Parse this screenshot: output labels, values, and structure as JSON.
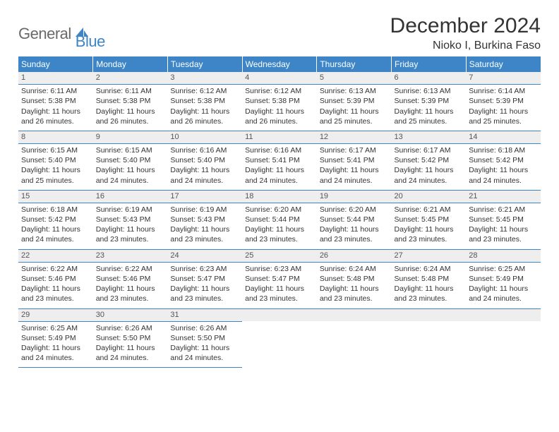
{
  "brand": {
    "first": "General",
    "second": "Blue"
  },
  "title": "December 2024",
  "location": "Nioko I, Burkina Faso",
  "colors": {
    "header_bg": "#3d85c6",
    "header_text": "#ffffff",
    "daynum_bg": "#eeeeee",
    "border": "#3d85c6",
    "body_text": "#333333",
    "logo_grey": "#6a6a6a",
    "logo_blue": "#3d85c6"
  },
  "weekdays": [
    "Sunday",
    "Monday",
    "Tuesday",
    "Wednesday",
    "Thursday",
    "Friday",
    "Saturday"
  ],
  "weeks": [
    [
      {
        "day": 1,
        "sunrise": "6:11 AM",
        "sunset": "5:38 PM",
        "daylight": "11 hours and 26 minutes."
      },
      {
        "day": 2,
        "sunrise": "6:11 AM",
        "sunset": "5:38 PM",
        "daylight": "11 hours and 26 minutes."
      },
      {
        "day": 3,
        "sunrise": "6:12 AM",
        "sunset": "5:38 PM",
        "daylight": "11 hours and 26 minutes."
      },
      {
        "day": 4,
        "sunrise": "6:12 AM",
        "sunset": "5:38 PM",
        "daylight": "11 hours and 26 minutes."
      },
      {
        "day": 5,
        "sunrise": "6:13 AM",
        "sunset": "5:39 PM",
        "daylight": "11 hours and 25 minutes."
      },
      {
        "day": 6,
        "sunrise": "6:13 AM",
        "sunset": "5:39 PM",
        "daylight": "11 hours and 25 minutes."
      },
      {
        "day": 7,
        "sunrise": "6:14 AM",
        "sunset": "5:39 PM",
        "daylight": "11 hours and 25 minutes."
      }
    ],
    [
      {
        "day": 8,
        "sunrise": "6:15 AM",
        "sunset": "5:40 PM",
        "daylight": "11 hours and 25 minutes."
      },
      {
        "day": 9,
        "sunrise": "6:15 AM",
        "sunset": "5:40 PM",
        "daylight": "11 hours and 24 minutes."
      },
      {
        "day": 10,
        "sunrise": "6:16 AM",
        "sunset": "5:40 PM",
        "daylight": "11 hours and 24 minutes."
      },
      {
        "day": 11,
        "sunrise": "6:16 AM",
        "sunset": "5:41 PM",
        "daylight": "11 hours and 24 minutes."
      },
      {
        "day": 12,
        "sunrise": "6:17 AM",
        "sunset": "5:41 PM",
        "daylight": "11 hours and 24 minutes."
      },
      {
        "day": 13,
        "sunrise": "6:17 AM",
        "sunset": "5:42 PM",
        "daylight": "11 hours and 24 minutes."
      },
      {
        "day": 14,
        "sunrise": "6:18 AM",
        "sunset": "5:42 PM",
        "daylight": "11 hours and 24 minutes."
      }
    ],
    [
      {
        "day": 15,
        "sunrise": "6:18 AM",
        "sunset": "5:42 PM",
        "daylight": "11 hours and 24 minutes."
      },
      {
        "day": 16,
        "sunrise": "6:19 AM",
        "sunset": "5:43 PM",
        "daylight": "11 hours and 23 minutes."
      },
      {
        "day": 17,
        "sunrise": "6:19 AM",
        "sunset": "5:43 PM",
        "daylight": "11 hours and 23 minutes."
      },
      {
        "day": 18,
        "sunrise": "6:20 AM",
        "sunset": "5:44 PM",
        "daylight": "11 hours and 23 minutes."
      },
      {
        "day": 19,
        "sunrise": "6:20 AM",
        "sunset": "5:44 PM",
        "daylight": "11 hours and 23 minutes."
      },
      {
        "day": 20,
        "sunrise": "6:21 AM",
        "sunset": "5:45 PM",
        "daylight": "11 hours and 23 minutes."
      },
      {
        "day": 21,
        "sunrise": "6:21 AM",
        "sunset": "5:45 PM",
        "daylight": "11 hours and 23 minutes."
      }
    ],
    [
      {
        "day": 22,
        "sunrise": "6:22 AM",
        "sunset": "5:46 PM",
        "daylight": "11 hours and 23 minutes."
      },
      {
        "day": 23,
        "sunrise": "6:22 AM",
        "sunset": "5:46 PM",
        "daylight": "11 hours and 23 minutes."
      },
      {
        "day": 24,
        "sunrise": "6:23 AM",
        "sunset": "5:47 PM",
        "daylight": "11 hours and 23 minutes."
      },
      {
        "day": 25,
        "sunrise": "6:23 AM",
        "sunset": "5:47 PM",
        "daylight": "11 hours and 23 minutes."
      },
      {
        "day": 26,
        "sunrise": "6:24 AM",
        "sunset": "5:48 PM",
        "daylight": "11 hours and 23 minutes."
      },
      {
        "day": 27,
        "sunrise": "6:24 AM",
        "sunset": "5:48 PM",
        "daylight": "11 hours and 23 minutes."
      },
      {
        "day": 28,
        "sunrise": "6:25 AM",
        "sunset": "5:49 PM",
        "daylight": "11 hours and 24 minutes."
      }
    ],
    [
      {
        "day": 29,
        "sunrise": "6:25 AM",
        "sunset": "5:49 PM",
        "daylight": "11 hours and 24 minutes."
      },
      {
        "day": 30,
        "sunrise": "6:26 AM",
        "sunset": "5:50 PM",
        "daylight": "11 hours and 24 minutes."
      },
      {
        "day": 31,
        "sunrise": "6:26 AM",
        "sunset": "5:50 PM",
        "daylight": "11 hours and 24 minutes."
      },
      null,
      null,
      null,
      null
    ]
  ],
  "labels": {
    "sunrise": "Sunrise:",
    "sunset": "Sunset:",
    "daylight": "Daylight:"
  }
}
